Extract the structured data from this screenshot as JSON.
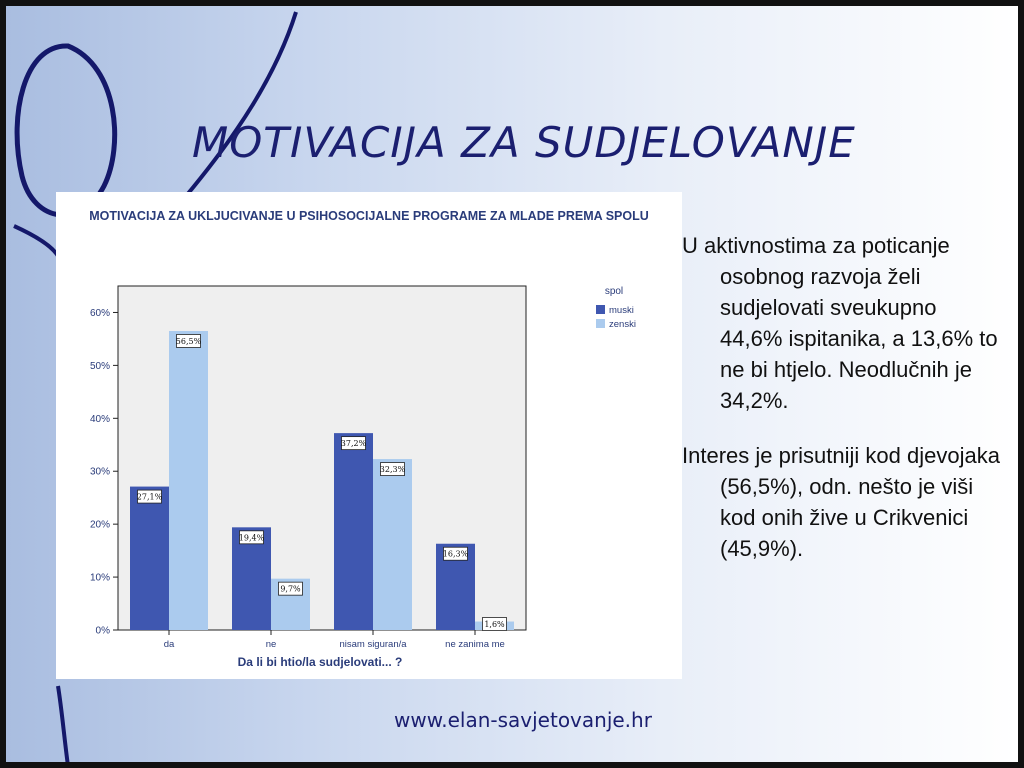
{
  "slide": {
    "title": "MOTIVACIJA ZA SUDJELOVANJE",
    "paragraphs": [
      "U aktivnostima za poticanje osobnog razvoja želi sudjelovati sveukupno 44,6% ispitanika, a 13,6% to ne bi htjelo. Neodlučnih je 34,2%.",
      "Interes je prisutniji kod djevojaka (56,5%), odn. nešto je viši kod onih žive u Crikvenici (45,9%)."
    ],
    "footer": "www.elan-savjetovanje.hr"
  },
  "colors": {
    "title": "#1b1f70",
    "muski": "#3f57b0",
    "zenski": "#abcbee"
  },
  "chart_data": {
    "type": "bar",
    "title": "MOTIVACIJA ZA UKLJUCIVANJE U PSIHOSOCIJALNE PROGRAME ZA MLADE PREMA SPOLU",
    "xlabel": "Da li bi htio/la sudjelovati... ?",
    "ylabel": "",
    "categories": [
      "da",
      "ne",
      "nisam siguran/a",
      "ne zanima me"
    ],
    "series": [
      {
        "name": "muski",
        "values": [
          27.1,
          19.4,
          37.2,
          16.3
        ],
        "labels": [
          "27,1%",
          "19,4%",
          "37,2%",
          "16,3%"
        ]
      },
      {
        "name": "zenski",
        "values": [
          56.5,
          9.7,
          32.3,
          1.6
        ],
        "labels": [
          "56,5%",
          "9,7%",
          "32,3%",
          "1,6%"
        ]
      }
    ],
    "ylim": [
      0,
      65
    ],
    "yticks": [
      0,
      10,
      20,
      30,
      40,
      50,
      60
    ],
    "ytick_labels": [
      "0%",
      "10%",
      "20%",
      "30%",
      "40%",
      "50%",
      "60%"
    ],
    "legend": {
      "title": "spol",
      "placement": "top-right"
    },
    "grid": false
  }
}
